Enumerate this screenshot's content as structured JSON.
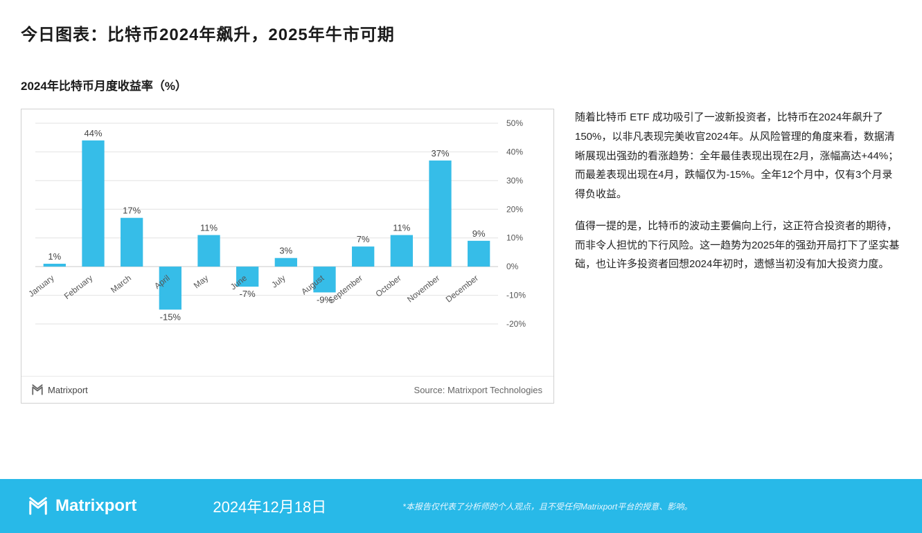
{
  "page": {
    "title": "今日图表：比特币2024年飙升，2025年牛市可期"
  },
  "chart": {
    "type": "bar",
    "title": "2024年比特币月度收益率（%）",
    "categories": [
      "January",
      "February",
      "March",
      "April",
      "May",
      "June",
      "July",
      "August",
      "September",
      "October",
      "November",
      "December"
    ],
    "values": [
      1,
      44,
      17,
      -15,
      11,
      -7,
      3,
      -9,
      7,
      11,
      37,
      9
    ],
    "value_labels": [
      "1%",
      "44%",
      "17%",
      "-15%",
      "11%",
      "-7%",
      "3%",
      "-9%",
      "7%",
      "11%",
      "37%",
      "9%"
    ],
    "bar_color": "#36bde8",
    "grid_color": "#e2e2e2",
    "axis_color": "#d0d0d0",
    "label_color": "#555555",
    "value_label_color": "#444444",
    "background_color": "#ffffff",
    "ylim": [
      -20,
      50
    ],
    "ytick_step": 10,
    "yticks": [
      -20,
      -10,
      0,
      10,
      20,
      30,
      40,
      50
    ],
    "ytick_labels": [
      "-20%",
      "-10%",
      "0%",
      "10%",
      "20%",
      "30%",
      "40%",
      "50%"
    ],
    "bar_width": 0.58,
    "label_fontsize": 12,
    "value_fontsize": 13,
    "tick_fontsize": 12,
    "category_rotation_deg": -38,
    "source_label": "Source: Matrixport Technologies",
    "brand_label": "Matrixport"
  },
  "text": {
    "para1": "随着比特币 ETF 成功吸引了一波新投资者，比特币在2024年飙升了150%，以非凡表现完美收官2024年。从风险管理的角度来看，数据清晰展现出强劲的看涨趋势：全年最佳表现出现在2月，涨幅高达+44%；而最差表现出现在4月，跌幅仅为-15%。全年12个月中，仅有3个月录得负收益。",
    "para2": "值得一提的是，比特币的波动主要偏向上行，这正符合投资者的期待，而非令人担忧的下行风险。这一趋势为2025年的强劲开局打下了坚实基础，也让许多投资者回想2024年初时，遗憾当初没有加大投资力度。"
  },
  "footer": {
    "brand": "Matrixport",
    "date": "2024年12月18日",
    "disclaimer": "*本报告仅代表了分析师的个人观点，且不受任何Matrixport平台的授意、影响。",
    "bg_color": "#28b9e8",
    "text_color": "#ffffff"
  },
  "brand": {
    "logo_color_mini": "#666666",
    "logo_color_footer": "#ffffff"
  }
}
